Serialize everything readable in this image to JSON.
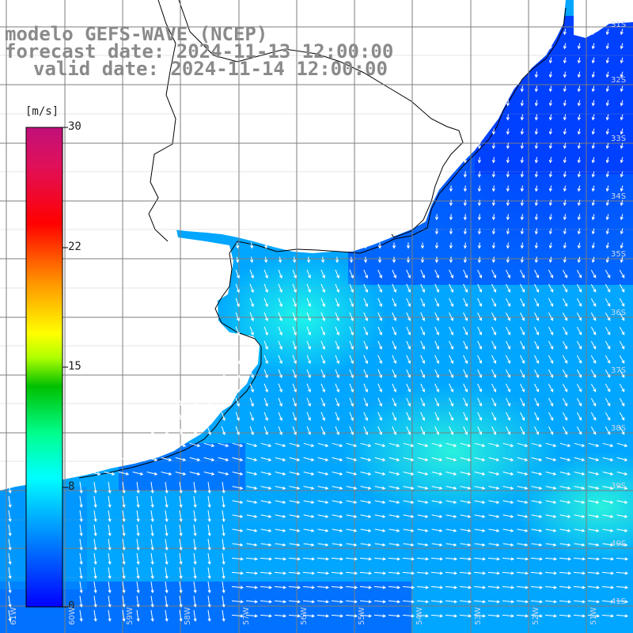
{
  "header": {
    "line1": "modelo GEFS-WAVE (NCEP)",
    "line2": "forecast date: 2024-11-13 12:00:00",
    "line3": "valid date: 2024-11-14 12:00:00"
  },
  "colorbar": {
    "unit": "[m/s]",
    "ticks": [
      {
        "label": "30",
        "value": 30
      },
      {
        "label": "22",
        "value": 22
      },
      {
        "label": "15",
        "value": 15
      },
      {
        "label": "8",
        "value": 8
      },
      {
        "label": "0",
        "value": 0
      }
    ],
    "colors": [
      "#0000ff",
      "#00a0ff",
      "#00ffff",
      "#00ff80",
      "#00c000",
      "#c0ff00",
      "#ffff00",
      "#ff8000",
      "#ff0000",
      "#e00060",
      "#c0106e"
    ]
  },
  "map": {
    "lat_labels": [
      "31S",
      "32S",
      "33S",
      "34S",
      "35S",
      "36S",
      "37S",
      "38S",
      "39S",
      "40S",
      "41S"
    ],
    "lon_labels": [
      "61W",
      "60W",
      "59W",
      "58W",
      "57W",
      "56W",
      "55W",
      "54W",
      "53W",
      "52W",
      "51W"
    ],
    "land_color": "#ffffff",
    "grid_color": "#808080",
    "arrow_color": "#ffffff"
  }
}
